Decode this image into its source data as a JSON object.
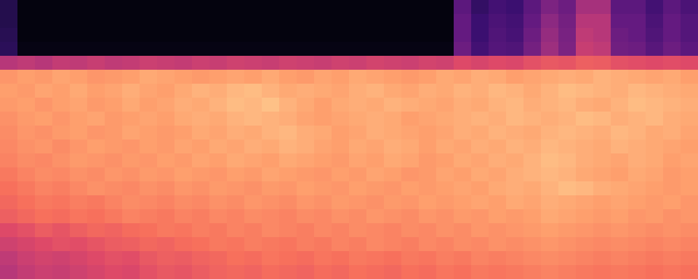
{
  "chart_data": {
    "type": "heatmap",
    "tick_labels": false,
    "zlim": [
      0,
      1
    ],
    "cells": [
      [
        0.14,
        0.02,
        0.02,
        0.02,
        0.02,
        0.02,
        0.02,
        0.02,
        0.02,
        0.02,
        0.02,
        0.02,
        0.02,
        0.02,
        0.02,
        0.02,
        0.02,
        0.02,
        0.02,
        0.02,
        0.02,
        0.02,
        0.02,
        0.02,
        0.02,
        0.02,
        0.28,
        0.18,
        0.22,
        0.2,
        0.28,
        0.36,
        0.32,
        0.46,
        0.46,
        0.28,
        0.28,
        0.22,
        0.28,
        0.24
      ],
      [
        0.14,
        0.02,
        0.02,
        0.02,
        0.02,
        0.02,
        0.02,
        0.02,
        0.02,
        0.02,
        0.02,
        0.02,
        0.02,
        0.02,
        0.02,
        0.02,
        0.02,
        0.02,
        0.02,
        0.02,
        0.02,
        0.02,
        0.02,
        0.02,
        0.02,
        0.02,
        0.3,
        0.2,
        0.24,
        0.22,
        0.3,
        0.4,
        0.34,
        0.5,
        0.5,
        0.3,
        0.3,
        0.24,
        0.3,
        0.26
      ],
      [
        0.15,
        0.02,
        0.02,
        0.02,
        0.02,
        0.02,
        0.02,
        0.02,
        0.02,
        0.02,
        0.02,
        0.02,
        0.02,
        0.02,
        0.02,
        0.02,
        0.02,
        0.02,
        0.02,
        0.02,
        0.02,
        0.02,
        0.02,
        0.02,
        0.02,
        0.02,
        0.3,
        0.2,
        0.25,
        0.23,
        0.32,
        0.42,
        0.35,
        0.52,
        0.5,
        0.32,
        0.3,
        0.25,
        0.3,
        0.26
      ],
      [
        0.16,
        0.03,
        0.03,
        0.03,
        0.03,
        0.03,
        0.03,
        0.03,
        0.03,
        0.03,
        0.03,
        0.03,
        0.03,
        0.03,
        0.03,
        0.03,
        0.03,
        0.03,
        0.03,
        0.03,
        0.03,
        0.03,
        0.03,
        0.03,
        0.03,
        0.03,
        0.32,
        0.22,
        0.26,
        0.25,
        0.34,
        0.44,
        0.36,
        0.54,
        0.52,
        0.33,
        0.32,
        0.27,
        0.32,
        0.28
      ],
      [
        0.5,
        0.52,
        0.5,
        0.53,
        0.52,
        0.54,
        0.52,
        0.53,
        0.55,
        0.54,
        0.53,
        0.55,
        0.54,
        0.56,
        0.55,
        0.54,
        0.56,
        0.55,
        0.54,
        0.56,
        0.55,
        0.57,
        0.56,
        0.55,
        0.57,
        0.56,
        0.6,
        0.58,
        0.6,
        0.59,
        0.62,
        0.64,
        0.63,
        0.66,
        0.65,
        0.62,
        0.61,
        0.6,
        0.61,
        0.6
      ],
      [
        0.78,
        0.8,
        0.79,
        0.81,
        0.8,
        0.78,
        0.79,
        0.8,
        0.82,
        0.81,
        0.8,
        0.79,
        0.8,
        0.81,
        0.8,
        0.82,
        0.8,
        0.79,
        0.81,
        0.8,
        0.82,
        0.81,
        0.8,
        0.79,
        0.8,
        0.82,
        0.81,
        0.83,
        0.82,
        0.8,
        0.81,
        0.82,
        0.83,
        0.82,
        0.84,
        0.83,
        0.82,
        0.81,
        0.82,
        0.8
      ],
      [
        0.8,
        0.79,
        0.81,
        0.8,
        0.82,
        0.8,
        0.81,
        0.83,
        0.81,
        0.8,
        0.82,
        0.84,
        0.83,
        0.85,
        0.86,
        0.84,
        0.82,
        0.83,
        0.82,
        0.81,
        0.83,
        0.84,
        0.82,
        0.81,
        0.83,
        0.82,
        0.84,
        0.83,
        0.85,
        0.84,
        0.82,
        0.84,
        0.86,
        0.85,
        0.84,
        0.83,
        0.85,
        0.84,
        0.83,
        0.82
      ],
      [
        0.79,
        0.8,
        0.78,
        0.8,
        0.81,
        0.79,
        0.8,
        0.82,
        0.8,
        0.81,
        0.83,
        0.82,
        0.84,
        0.86,
        0.85,
        0.87,
        0.84,
        0.82,
        0.8,
        0.82,
        0.83,
        0.82,
        0.84,
        0.83,
        0.82,
        0.81,
        0.83,
        0.82,
        0.84,
        0.85,
        0.83,
        0.84,
        0.85,
        0.83,
        0.82,
        0.84,
        0.86,
        0.85,
        0.84,
        0.83
      ],
      [
        0.77,
        0.79,
        0.8,
        0.78,
        0.8,
        0.81,
        0.79,
        0.8,
        0.81,
        0.8,
        0.82,
        0.83,
        0.82,
        0.84,
        0.85,
        0.84,
        0.83,
        0.81,
        0.8,
        0.81,
        0.82,
        0.83,
        0.82,
        0.8,
        0.81,
        0.82,
        0.83,
        0.84,
        0.83,
        0.85,
        0.84,
        0.83,
        0.84,
        0.86,
        0.85,
        0.83,
        0.84,
        0.85,
        0.83,
        0.82
      ],
      [
        0.76,
        0.78,
        0.77,
        0.79,
        0.8,
        0.78,
        0.79,
        0.81,
        0.8,
        0.79,
        0.8,
        0.82,
        0.81,
        0.83,
        0.82,
        0.84,
        0.85,
        0.83,
        0.82,
        0.8,
        0.81,
        0.83,
        0.82,
        0.81,
        0.8,
        0.81,
        0.83,
        0.82,
        0.84,
        0.83,
        0.82,
        0.84,
        0.85,
        0.84,
        0.83,
        0.85,
        0.84,
        0.82,
        0.83,
        0.81
      ],
      [
        0.75,
        0.77,
        0.78,
        0.76,
        0.78,
        0.8,
        0.79,
        0.78,
        0.8,
        0.79,
        0.81,
        0.8,
        0.82,
        0.81,
        0.83,
        0.82,
        0.84,
        0.83,
        0.81,
        0.8,
        0.82,
        0.81,
        0.83,
        0.82,
        0.8,
        0.82,
        0.81,
        0.83,
        0.82,
        0.84,
        0.83,
        0.85,
        0.84,
        0.83,
        0.82,
        0.84,
        0.83,
        0.82,
        0.81,
        0.8
      ],
      [
        0.74,
        0.76,
        0.75,
        0.77,
        0.79,
        0.78,
        0.77,
        0.79,
        0.78,
        0.8,
        0.79,
        0.81,
        0.8,
        0.82,
        0.81,
        0.8,
        0.82,
        0.81,
        0.8,
        0.79,
        0.81,
        0.8,
        0.82,
        0.81,
        0.79,
        0.8,
        0.82,
        0.81,
        0.83,
        0.82,
        0.84,
        0.86,
        0.85,
        0.83,
        0.82,
        0.81,
        0.83,
        0.82,
        0.8,
        0.81
      ],
      [
        0.72,
        0.74,
        0.76,
        0.75,
        0.77,
        0.76,
        0.78,
        0.77,
        0.79,
        0.78,
        0.8,
        0.79,
        0.78,
        0.8,
        0.79,
        0.81,
        0.8,
        0.79,
        0.78,
        0.8,
        0.79,
        0.81,
        0.8,
        0.78,
        0.79,
        0.81,
        0.8,
        0.82,
        0.81,
        0.83,
        0.84,
        0.85,
        0.84,
        0.82,
        0.81,
        0.8,
        0.82,
        0.81,
        0.79,
        0.8
      ],
      [
        0.7,
        0.72,
        0.74,
        0.73,
        0.75,
        0.77,
        0.76,
        0.75,
        0.77,
        0.76,
        0.78,
        0.77,
        0.79,
        0.78,
        0.77,
        0.79,
        0.78,
        0.8,
        0.79,
        0.78,
        0.8,
        0.79,
        0.78,
        0.8,
        0.79,
        0.8,
        0.81,
        0.8,
        0.82,
        0.83,
        0.82,
        0.84,
        0.86,
        0.85,
        0.83,
        0.82,
        0.81,
        0.8,
        0.79,
        0.8
      ],
      [
        0.68,
        0.7,
        0.72,
        0.71,
        0.73,
        0.72,
        0.74,
        0.76,
        0.75,
        0.74,
        0.76,
        0.75,
        0.77,
        0.76,
        0.78,
        0.77,
        0.76,
        0.78,
        0.77,
        0.79,
        0.78,
        0.77,
        0.79,
        0.78,
        0.8,
        0.79,
        0.8,
        0.81,
        0.8,
        0.82,
        0.81,
        0.83,
        0.82,
        0.81,
        0.8,
        0.81,
        0.8,
        0.79,
        0.8,
        0.78
      ],
      [
        0.66,
        0.68,
        0.7,
        0.69,
        0.71,
        0.7,
        0.72,
        0.74,
        0.73,
        0.72,
        0.74,
        0.73,
        0.75,
        0.74,
        0.76,
        0.75,
        0.74,
        0.76,
        0.75,
        0.77,
        0.76,
        0.78,
        0.77,
        0.76,
        0.78,
        0.77,
        0.79,
        0.78,
        0.8,
        0.79,
        0.8,
        0.82,
        0.81,
        0.8,
        0.79,
        0.8,
        0.78,
        0.79,
        0.77,
        0.78
      ],
      [
        0.6,
        0.62,
        0.65,
        0.63,
        0.66,
        0.68,
        0.67,
        0.69,
        0.7,
        0.72,
        0.71,
        0.73,
        0.72,
        0.74,
        0.73,
        0.75,
        0.74,
        0.73,
        0.75,
        0.74,
        0.76,
        0.75,
        0.74,
        0.76,
        0.75,
        0.77,
        0.76,
        0.78,
        0.77,
        0.78,
        0.79,
        0.8,
        0.79,
        0.78,
        0.77,
        0.78,
        0.77,
        0.76,
        0.77,
        0.76
      ],
      [
        0.56,
        0.58,
        0.6,
        0.62,
        0.61,
        0.63,
        0.65,
        0.66,
        0.68,
        0.67,
        0.69,
        0.7,
        0.72,
        0.71,
        0.73,
        0.72,
        0.71,
        0.73,
        0.72,
        0.74,
        0.73,
        0.75,
        0.74,
        0.73,
        0.75,
        0.74,
        0.76,
        0.75,
        0.77,
        0.76,
        0.77,
        0.78,
        0.77,
        0.76,
        0.75,
        0.76,
        0.75,
        0.74,
        0.75,
        0.74
      ],
      [
        0.52,
        0.55,
        0.57,
        0.56,
        0.58,
        0.6,
        0.62,
        0.61,
        0.64,
        0.66,
        0.65,
        0.67,
        0.68,
        0.7,
        0.69,
        0.71,
        0.7,
        0.69,
        0.71,
        0.7,
        0.72,
        0.71,
        0.7,
        0.72,
        0.71,
        0.73,
        0.72,
        0.74,
        0.73,
        0.74,
        0.75,
        0.76,
        0.75,
        0.74,
        0.73,
        0.74,
        0.73,
        0.72,
        0.73,
        0.72
      ],
      [
        0.5,
        0.53,
        0.55,
        0.54,
        0.56,
        0.58,
        0.6,
        0.59,
        0.62,
        0.64,
        0.63,
        0.65,
        0.67,
        0.68,
        0.67,
        0.69,
        0.68,
        0.67,
        0.69,
        0.68,
        0.7,
        0.69,
        0.68,
        0.7,
        0.69,
        0.71,
        0.7,
        0.72,
        0.71,
        0.72,
        0.73,
        0.74,
        0.73,
        0.72,
        0.71,
        0.72,
        0.71,
        0.7,
        0.71,
        0.7
      ]
    ]
  }
}
